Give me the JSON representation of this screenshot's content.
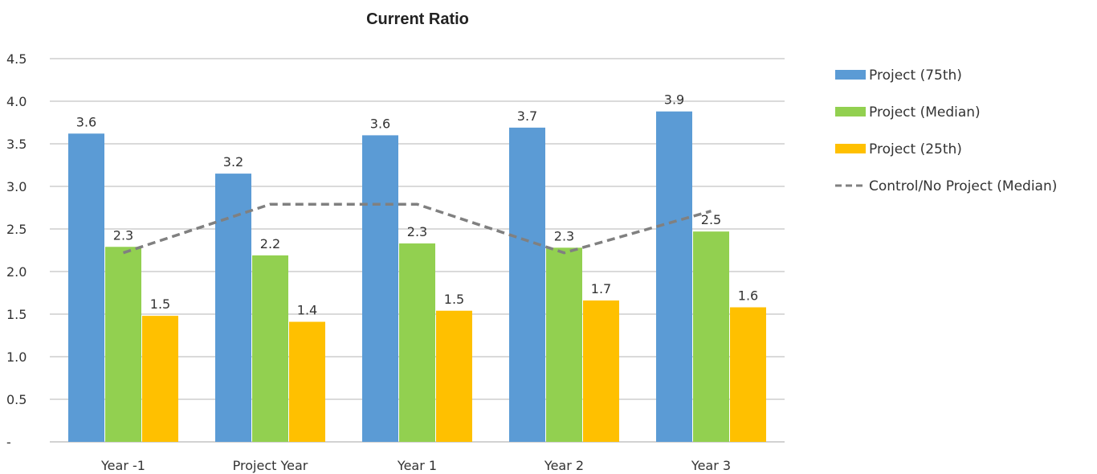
{
  "chart_data": {
    "type": "bar",
    "title": "Current Ratio",
    "xlabel": "",
    "ylabel": "",
    "categories": [
      "Year -1",
      "Project Year",
      "Year 1",
      "Year 2",
      "Year 3"
    ],
    "ylim": [
      0,
      4.5
    ],
    "yticks": [
      "-",
      "0.5",
      "1.0",
      "1.5",
      "2.0",
      "2.5",
      "3.0",
      "3.5",
      "4.0",
      "4.5"
    ],
    "grid": true,
    "legend_position": "right",
    "series": [
      {
        "name": "Project (75th)",
        "type": "bar",
        "color": "#5B9BD5",
        "values": [
          3.62,
          3.15,
          3.6,
          3.69,
          3.88
        ],
        "labels": [
          "3.6",
          "3.2",
          "3.6",
          "3.7",
          "3.9"
        ]
      },
      {
        "name": "Project (Median)",
        "type": "bar",
        "color": "#92D050",
        "values": [
          2.29,
          2.19,
          2.33,
          2.28,
          2.47
        ],
        "labels": [
          "2.3",
          "2.2",
          "2.3",
          "2.3",
          "2.5"
        ]
      },
      {
        "name": "Project (25th)",
        "type": "bar",
        "color": "#FFC000",
        "values": [
          1.48,
          1.41,
          1.54,
          1.66,
          1.58
        ],
        "labels": [
          "1.5",
          "1.4",
          "1.5",
          "1.7",
          "1.6"
        ]
      },
      {
        "name": "Control/No Project (Median)",
        "type": "line",
        "style": "dashed",
        "color": "#808080",
        "values": [
          2.22,
          2.79,
          2.79,
          2.22,
          2.71
        ]
      }
    ]
  }
}
